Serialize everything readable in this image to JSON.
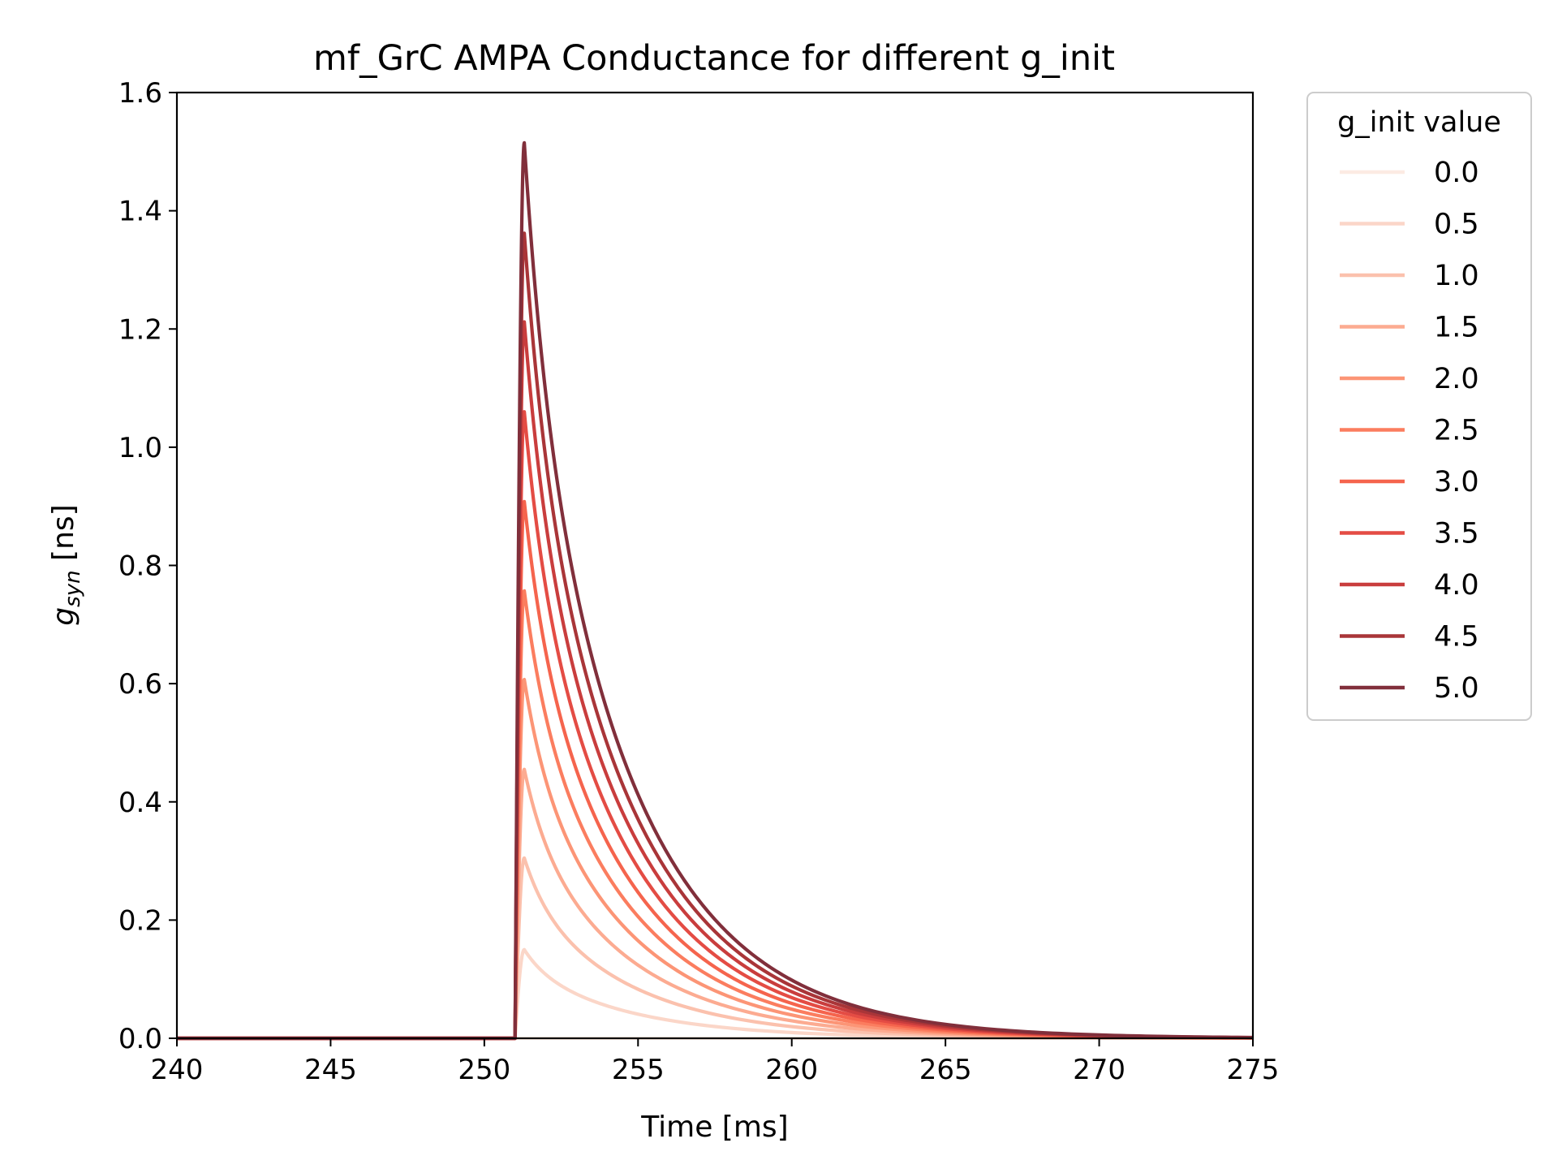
{
  "chart_data": {
    "type": "line",
    "title": "mf_GrC AMPA Conductance for different g_init",
    "xlabel": "Time [ms]",
    "ylabel_main": "g",
    "ylabel_sub": "syn",
    "ylabel_unit": " [ns]",
    "xlim": [
      240,
      275
    ],
    "ylim": [
      0,
      1.6
    ],
    "xticks": [
      240,
      245,
      250,
      255,
      260,
      265,
      270,
      275
    ],
    "yticks": [
      0.0,
      0.2,
      0.4,
      0.6,
      0.8,
      1.0,
      1.2,
      1.4,
      1.6
    ],
    "grid": false,
    "legend": {
      "title": "g_init value",
      "placement": "outside-right"
    },
    "onset_time": 251.0,
    "peak_time": 251.3,
    "decay_tau_ms": 3.5,
    "series": [
      {
        "name": "0.0",
        "peak": 0.0,
        "color": "#fcebe3"
      },
      {
        "name": "0.5",
        "peak": 0.15,
        "color": "#fbd6c8"
      },
      {
        "name": "1.0",
        "peak": 0.305,
        "color": "#fbc1ad"
      },
      {
        "name": "1.5",
        "peak": 0.455,
        "color": "#fcab91"
      },
      {
        "name": "2.0",
        "peak": 0.607,
        "color": "#fc9576"
      },
      {
        "name": "2.5",
        "peak": 0.757,
        "color": "#fb7d5f"
      },
      {
        "name": "3.0",
        "peak": 0.908,
        "color": "#f5644d"
      },
      {
        "name": "3.5",
        "peak": 1.06,
        "color": "#e44c44"
      },
      {
        "name": "4.0",
        "peak": 1.212,
        "color": "#c93d3d"
      },
      {
        "name": "4.5",
        "peak": 1.362,
        "color": "#a93538"
      },
      {
        "name": "5.0",
        "peak": 1.515,
        "color": "#812f3b"
      }
    ]
  }
}
